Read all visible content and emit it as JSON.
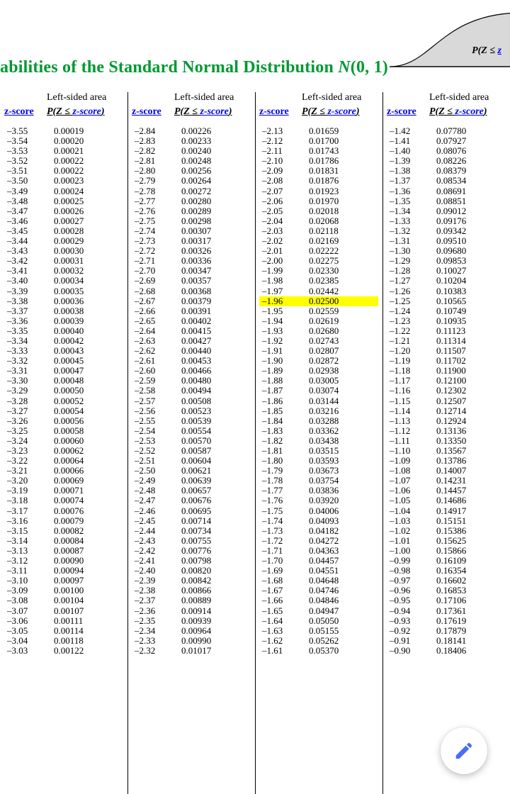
{
  "title_prefix": "abilities of the Standard Normal Distribution ",
  "title_dist": "N",
  "title_params": "(0, 1)",
  "curve_label_prefix": "P(Z ≤ ",
  "curve_label_z": "z",
  "header_top": "Left-sided area",
  "header_z_label": "z-score",
  "header_p_prefix": "P(Z ≤ ",
  "header_p_link": "z-score",
  "header_p_suffix": ")",
  "fab_icon": "pencil-icon",
  "highlight_zscore": "–1.96",
  "columns": [
    {
      "rows": [
        {
          "z": "–3.55",
          "p": "0.00019"
        },
        {
          "z": "–3.54",
          "p": "0.00020"
        },
        {
          "z": "–3.53",
          "p": "0.00021"
        },
        {
          "z": "–3.52",
          "p": "0.00022"
        },
        {
          "z": "–3.51",
          "p": "0.00022"
        },
        {
          "z": "–3.50",
          "p": "0.00023"
        },
        {
          "z": "–3.49",
          "p": "0.00024"
        },
        {
          "z": "–3.48",
          "p": "0.00025"
        },
        {
          "z": "–3.47",
          "p": "0.00026"
        },
        {
          "z": "–3.46",
          "p": "0.00027"
        },
        {
          "z": "–3.45",
          "p": "0.00028"
        },
        {
          "z": "–3.44",
          "p": "0.00029"
        },
        {
          "z": "–3.43",
          "p": "0.00030"
        },
        {
          "z": "–3.42",
          "p": "0.00031"
        },
        {
          "z": "–3.41",
          "p": "0.00032"
        },
        {
          "z": "–3.40",
          "p": "0.00034"
        },
        {
          "z": "–3.39",
          "p": "0.00035"
        },
        {
          "z": "–3.38",
          "p": "0.00036"
        },
        {
          "z": "–3.37",
          "p": "0.00038"
        },
        {
          "z": "–3.36",
          "p": "0.00039"
        },
        {
          "z": "–3.35",
          "p": "0.00040"
        },
        {
          "z": "–3.34",
          "p": "0.00042"
        },
        {
          "z": "–3.33",
          "p": "0.00043"
        },
        {
          "z": "–3.32",
          "p": "0.00045"
        },
        {
          "z": "–3.31",
          "p": "0.00047"
        },
        {
          "z": "–3.30",
          "p": "0.00048"
        },
        {
          "z": "–3.29",
          "p": "0.00050"
        },
        {
          "z": "–3.28",
          "p": "0.00052"
        },
        {
          "z": "–3.27",
          "p": "0.00054"
        },
        {
          "z": "–3.26",
          "p": "0.00056"
        },
        {
          "z": "–3.25",
          "p": "0.00058"
        },
        {
          "z": "–3.24",
          "p": "0.00060"
        },
        {
          "z": "–3.23",
          "p": "0.00062"
        },
        {
          "z": "–3.22",
          "p": "0.00064"
        },
        {
          "z": "–3.21",
          "p": "0.00066"
        },
        {
          "z": "–3.20",
          "p": "0.00069"
        },
        {
          "z": "–3.19",
          "p": "0.00071"
        },
        {
          "z": "–3.18",
          "p": "0.00074"
        },
        {
          "z": "–3.17",
          "p": "0.00076"
        },
        {
          "z": "–3.16",
          "p": "0.00079"
        },
        {
          "z": "–3.15",
          "p": "0.00082"
        },
        {
          "z": "–3.14",
          "p": "0.00084"
        },
        {
          "z": "–3.13",
          "p": "0.00087"
        },
        {
          "z": "–3.12",
          "p": "0.00090"
        },
        {
          "z": "–3.11",
          "p": "0.00094"
        },
        {
          "z": "–3.10",
          "p": "0.00097"
        },
        {
          "z": "–3.09",
          "p": "0.00100"
        },
        {
          "z": "–3.08",
          "p": "0.00104"
        },
        {
          "z": "–3.07",
          "p": "0.00107"
        },
        {
          "z": "–3.06",
          "p": "0.00111"
        },
        {
          "z": "–3.05",
          "p": "0.00114"
        },
        {
          "z": "–3.04",
          "p": "0.00118"
        },
        {
          "z": "–3.03",
          "p": "0.00122"
        }
      ]
    },
    {
      "rows": [
        {
          "z": "–2.84",
          "p": "0.00226"
        },
        {
          "z": "–2.83",
          "p": "0.00233"
        },
        {
          "z": "–2.82",
          "p": "0.00240"
        },
        {
          "z": "–2.81",
          "p": "0.00248"
        },
        {
          "z": "–2.80",
          "p": "0.00256"
        },
        {
          "z": "–2.79",
          "p": "0.00264"
        },
        {
          "z": "–2.78",
          "p": "0.00272"
        },
        {
          "z": "–2.77",
          "p": "0.00280"
        },
        {
          "z": "–2.76",
          "p": "0.00289"
        },
        {
          "z": "–2.75",
          "p": "0.00298"
        },
        {
          "z": "–2.74",
          "p": "0.00307"
        },
        {
          "z": "–2.73",
          "p": "0.00317"
        },
        {
          "z": "–2.72",
          "p": "0.00326"
        },
        {
          "z": "–2.71",
          "p": "0.00336"
        },
        {
          "z": "–2.70",
          "p": "0.00347"
        },
        {
          "z": "–2.69",
          "p": "0.00357"
        },
        {
          "z": "–2.68",
          "p": "0.00368"
        },
        {
          "z": "–2.67",
          "p": "0.00379"
        },
        {
          "z": "–2.66",
          "p": "0.00391"
        },
        {
          "z": "–2.65",
          "p": "0.00402"
        },
        {
          "z": "–2.64",
          "p": "0.00415"
        },
        {
          "z": "–2.63",
          "p": "0.00427"
        },
        {
          "z": "–2.62",
          "p": "0.00440"
        },
        {
          "z": "–2.61",
          "p": "0.00453"
        },
        {
          "z": "–2.60",
          "p": "0.00466"
        },
        {
          "z": "–2.59",
          "p": "0.00480"
        },
        {
          "z": "–2.58",
          "p": "0.00494"
        },
        {
          "z": "–2.57",
          "p": "0.00508"
        },
        {
          "z": "–2.56",
          "p": "0.00523"
        },
        {
          "z": "–2.55",
          "p": "0.00539"
        },
        {
          "z": "–2.54",
          "p": "0.00554"
        },
        {
          "z": "–2.53",
          "p": "0.00570"
        },
        {
          "z": "–2.52",
          "p": "0.00587"
        },
        {
          "z": "–2.51",
          "p": "0.00604"
        },
        {
          "z": "–2.50",
          "p": "0.00621"
        },
        {
          "z": "–2.49",
          "p": "0.00639"
        },
        {
          "z": "–2.48",
          "p": "0.00657"
        },
        {
          "z": "–2.47",
          "p": "0.00676"
        },
        {
          "z": "–2.46",
          "p": "0.00695"
        },
        {
          "z": "–2.45",
          "p": "0.00714"
        },
        {
          "z": "–2.44",
          "p": "0.00734"
        },
        {
          "z": "–2.43",
          "p": "0.00755"
        },
        {
          "z": "–2.42",
          "p": "0.00776"
        },
        {
          "z": "–2.41",
          "p": "0.00798"
        },
        {
          "z": "–2.40",
          "p": "0.00820"
        },
        {
          "z": "–2.39",
          "p": "0.00842"
        },
        {
          "z": "–2.38",
          "p": "0.00866"
        },
        {
          "z": "–2.37",
          "p": "0.00889"
        },
        {
          "z": "–2.36",
          "p": "0.00914"
        },
        {
          "z": "–2.35",
          "p": "0.00939"
        },
        {
          "z": "–2.34",
          "p": "0.00964"
        },
        {
          "z": "–2.33",
          "p": "0.00990"
        },
        {
          "z": "–2.32",
          "p": "0.01017"
        }
      ]
    },
    {
      "rows": [
        {
          "z": "–2.13",
          "p": "0.01659"
        },
        {
          "z": "–2.12",
          "p": "0.01700"
        },
        {
          "z": "–2.11",
          "p": "0.01743"
        },
        {
          "z": "–2.10",
          "p": "0.01786"
        },
        {
          "z": "–2.09",
          "p": "0.01831"
        },
        {
          "z": "–2.08",
          "p": "0.01876"
        },
        {
          "z": "–2.07",
          "p": "0.01923"
        },
        {
          "z": "–2.06",
          "p": "0.01970"
        },
        {
          "z": "–2.05",
          "p": "0.02018"
        },
        {
          "z": "–2.04",
          "p": "0.02068"
        },
        {
          "z": "–2.03",
          "p": "0.02118"
        },
        {
          "z": "–2.02",
          "p": "0.02169"
        },
        {
          "z": "–2.01",
          "p": "0.02222"
        },
        {
          "z": "–2.00",
          "p": "0.02275"
        },
        {
          "z": "–1.99",
          "p": "0.02330"
        },
        {
          "z": "–1.98",
          "p": "0.02385"
        },
        {
          "z": "–1.97",
          "p": "0.02442"
        },
        {
          "z": "–1.96",
          "p": "0.02500"
        },
        {
          "z": "–1.95",
          "p": "0.02559"
        },
        {
          "z": "–1.94",
          "p": "0.02619"
        },
        {
          "z": "–1.93",
          "p": "0.02680"
        },
        {
          "z": "–1.92",
          "p": "0.02743"
        },
        {
          "z": "–1.91",
          "p": "0.02807"
        },
        {
          "z": "–1.90",
          "p": "0.02872"
        },
        {
          "z": "–1.89",
          "p": "0.02938"
        },
        {
          "z": "–1.88",
          "p": "0.03005"
        },
        {
          "z": "–1.87",
          "p": "0.03074"
        },
        {
          "z": "–1.86",
          "p": "0.03144"
        },
        {
          "z": "–1.85",
          "p": "0.03216"
        },
        {
          "z": "–1.84",
          "p": "0.03288"
        },
        {
          "z": "–1.83",
          "p": "0.03362"
        },
        {
          "z": "–1.82",
          "p": "0.03438"
        },
        {
          "z": "–1.81",
          "p": "0.03515"
        },
        {
          "z": "–1.80",
          "p": "0.03593"
        },
        {
          "z": "–1.79",
          "p": "0.03673"
        },
        {
          "z": "–1.78",
          "p": "0.03754"
        },
        {
          "z": "–1.77",
          "p": "0.03836"
        },
        {
          "z": "–1.76",
          "p": "0.03920"
        },
        {
          "z": "–1.75",
          "p": "0.04006"
        },
        {
          "z": "–1.74",
          "p": "0.04093"
        },
        {
          "z": "–1.73",
          "p": "0.04182"
        },
        {
          "z": "–1.72",
          "p": "0.04272"
        },
        {
          "z": "–1.71",
          "p": "0.04363"
        },
        {
          "z": "–1.70",
          "p": "0.04457"
        },
        {
          "z": "–1.69",
          "p": "0.04551"
        },
        {
          "z": "–1.68",
          "p": "0.04648"
        },
        {
          "z": "–1.67",
          "p": "0.04746"
        },
        {
          "z": "–1.66",
          "p": "0.04846"
        },
        {
          "z": "–1.65",
          "p": "0.04947"
        },
        {
          "z": "–1.64",
          "p": "0.05050"
        },
        {
          "z": "–1.63",
          "p": "0.05155"
        },
        {
          "z": "–1.62",
          "p": "0.05262"
        },
        {
          "z": "–1.61",
          "p": "0.05370"
        }
      ]
    },
    {
      "rows": [
        {
          "z": "–1.42",
          "p": "0.07780"
        },
        {
          "z": "–1.41",
          "p": "0.07927"
        },
        {
          "z": "–1.40",
          "p": "0.08076"
        },
        {
          "z": "–1.39",
          "p": "0.08226"
        },
        {
          "z": "–1.38",
          "p": "0.08379"
        },
        {
          "z": "–1.37",
          "p": "0.08534"
        },
        {
          "z": "–1.36",
          "p": "0.08691"
        },
        {
          "z": "–1.35",
          "p": "0.08851"
        },
        {
          "z": "–1.34",
          "p": "0.09012"
        },
        {
          "z": "–1.33",
          "p": "0.09176"
        },
        {
          "z": "–1.32",
          "p": "0.09342"
        },
        {
          "z": "–1.31",
          "p": "0.09510"
        },
        {
          "z": "–1.30",
          "p": "0.09680"
        },
        {
          "z": "–1.29",
          "p": "0.09853"
        },
        {
          "z": "–1.28",
          "p": "0.10027"
        },
        {
          "z": "–1.27",
          "p": "0.10204"
        },
        {
          "z": "–1.26",
          "p": "0.10383"
        },
        {
          "z": "–1.25",
          "p": "0.10565"
        },
        {
          "z": "–1.24",
          "p": "0.10749"
        },
        {
          "z": "–1.23",
          "p": "0.10935"
        },
        {
          "z": "–1.22",
          "p": "0.11123"
        },
        {
          "z": "–1.21",
          "p": "0.11314"
        },
        {
          "z": "–1.20",
          "p": "0.11507"
        },
        {
          "z": "–1.19",
          "p": "0.11702"
        },
        {
          "z": "–1.18",
          "p": "0.11900"
        },
        {
          "z": "–1.17",
          "p": "0.12100"
        },
        {
          "z": "–1.16",
          "p": "0.12302"
        },
        {
          "z": "–1.15",
          "p": "0.12507"
        },
        {
          "z": "–1.14",
          "p": "0.12714"
        },
        {
          "z": "–1.13",
          "p": "0.12924"
        },
        {
          "z": "–1.12",
          "p": "0.13136"
        },
        {
          "z": "–1.11",
          "p": "0.13350"
        },
        {
          "z": "–1.10",
          "p": "0.13567"
        },
        {
          "z": "–1.09",
          "p": "0.13786"
        },
        {
          "z": "–1.08",
          "p": "0.14007"
        },
        {
          "z": "–1.07",
          "p": "0.14231"
        },
        {
          "z": "–1.06",
          "p": "0.14457"
        },
        {
          "z": "–1.05",
          "p": "0.14686"
        },
        {
          "z": "–1.04",
          "p": "0.14917"
        },
        {
          "z": "–1.03",
          "p": "0.15151"
        },
        {
          "z": "–1.02",
          "p": "0.15386"
        },
        {
          "z": "–1.01",
          "p": "0.15625"
        },
        {
          "z": "–1.00",
          "p": "0.15866"
        },
        {
          "z": "–0.99",
          "p": "0.16109"
        },
        {
          "z": "–0.98",
          "p": "0.16354"
        },
        {
          "z": "–0.97",
          "p": "0.16602"
        },
        {
          "z": "–0.96",
          "p": "0.16853"
        },
        {
          "z": "–0.95",
          "p": "0.17106"
        },
        {
          "z": "–0.94",
          "p": "0.17361"
        },
        {
          "z": "–0.93",
          "p": "0.17619"
        },
        {
          "z": "–0.92",
          "p": "0.17879"
        },
        {
          "z": "–0.91",
          "p": "0.18141"
        },
        {
          "z": "–0.90",
          "p": "0.18406"
        }
      ]
    }
  ],
  "colors": {
    "title": "#009933",
    "link": "#0000ee",
    "highlight": "#ffff00",
    "curve_fill": "#d9d9d9",
    "fab_icon": "#4a6cf7"
  }
}
